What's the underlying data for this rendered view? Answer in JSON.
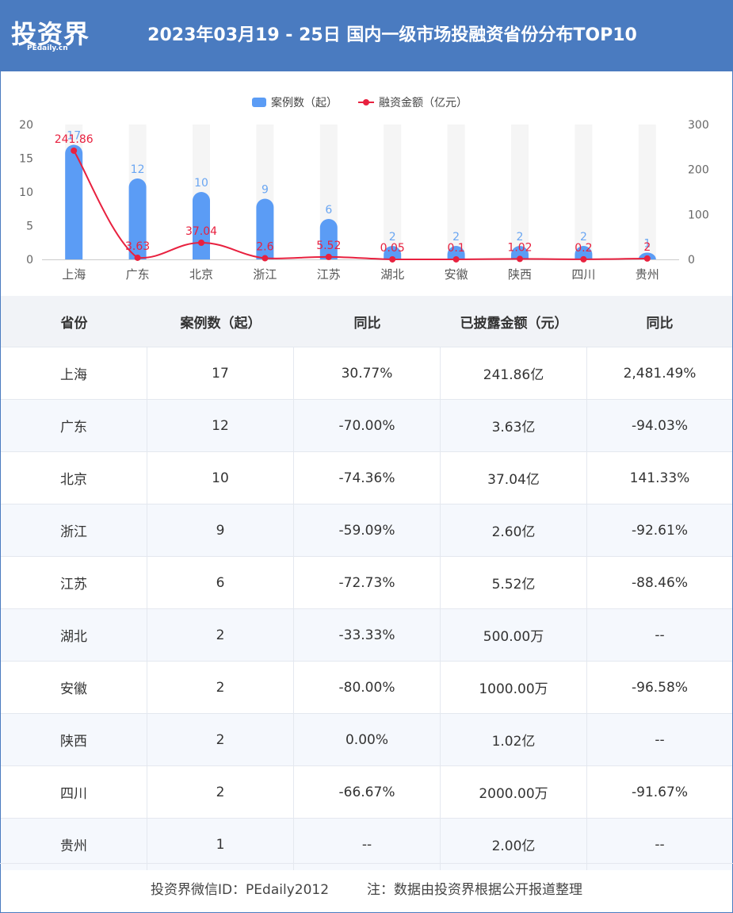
{
  "header": {
    "logo_text": "投资界",
    "logo_sub": "PEdaily.cn",
    "title": "2023年03月19 - 25日 国内一级市场投融资省份分布TOP10"
  },
  "colors": {
    "bar": "#5b9cf5",
    "line": "#e8213f",
    "header_bg": "#4a7bc0"
  },
  "chart_data": {
    "type": "bar+line",
    "categories": [
      "上海",
      "广东",
      "北京",
      "浙江",
      "江苏",
      "湖北",
      "安徽",
      "陕西",
      "四川",
      "贵州"
    ],
    "series": [
      {
        "name": "案例数（起）",
        "type": "bar",
        "axis": "left",
        "values": [
          17,
          12,
          10,
          9,
          6,
          2,
          2,
          2,
          2,
          1
        ]
      },
      {
        "name": "融资金额（亿元）",
        "type": "line",
        "axis": "right",
        "values": [
          241.86,
          3.63,
          37.04,
          2.6,
          5.52,
          0.05,
          0.1,
          1.02,
          0.2,
          2
        ]
      }
    ],
    "y_left": {
      "min": 0,
      "max": 20,
      "ticks": [
        0,
        5,
        10,
        15,
        20
      ]
    },
    "y_right": {
      "min": 0,
      "max": 300,
      "ticks": [
        0,
        100,
        200,
        300
      ]
    },
    "legend_position": "top-center"
  },
  "table": {
    "headers": [
      "省份",
      "案例数（起）",
      "同比",
      "已披露金额（元）",
      "同比"
    ],
    "rows": [
      [
        "上海",
        "17",
        "30.77%",
        "241.86亿",
        "2,481.49%"
      ],
      [
        "广东",
        "12",
        "-70.00%",
        "3.63亿",
        "-94.03%"
      ],
      [
        "北京",
        "10",
        "-74.36%",
        "37.04亿",
        "141.33%"
      ],
      [
        "浙江",
        "9",
        "-59.09%",
        "2.60亿",
        "-92.61%"
      ],
      [
        "江苏",
        "6",
        "-72.73%",
        "5.52亿",
        "-88.46%"
      ],
      [
        "湖北",
        "2",
        "-33.33%",
        "500.00万",
        "--"
      ],
      [
        "安徽",
        "2",
        "-80.00%",
        "1000.00万",
        "-96.58%"
      ],
      [
        "陕西",
        "2",
        "0.00%",
        "1.02亿",
        "--"
      ],
      [
        "四川",
        "2",
        "-66.67%",
        "2000.00万",
        "-91.67%"
      ],
      [
        "贵州",
        "1",
        "--",
        "2.00亿",
        "--"
      ]
    ]
  },
  "footer": {
    "wechat": "投资界微信ID：PEdaily2012",
    "note": "注：数据由投资界根据公开报道整理"
  }
}
